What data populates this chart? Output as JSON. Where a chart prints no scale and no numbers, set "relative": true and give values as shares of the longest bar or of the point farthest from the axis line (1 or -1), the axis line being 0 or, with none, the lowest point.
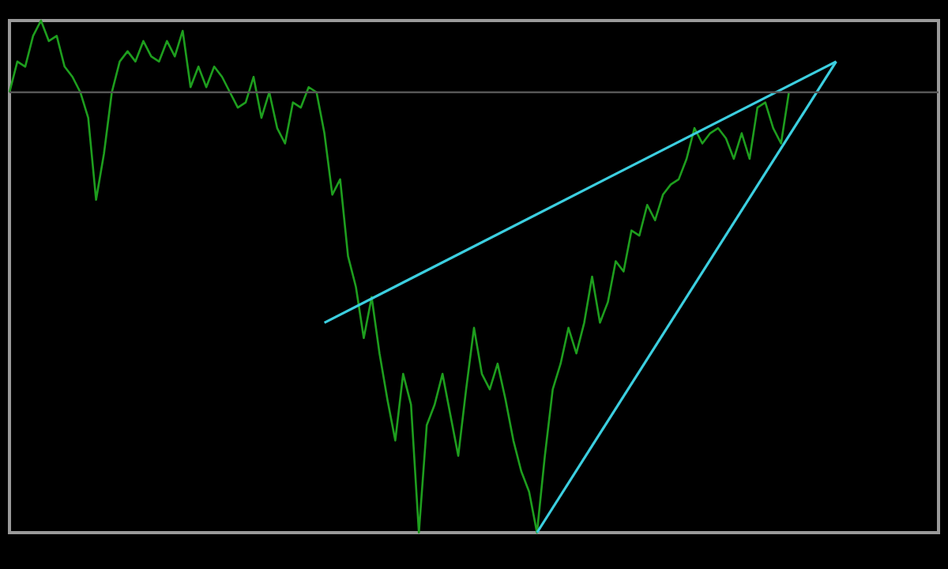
{
  "chart_data": {
    "type": "line",
    "relative": true,
    "tick_labels": false,
    "categories": [
      null,
      null,
      null,
      null,
      null,
      null,
      null,
      null,
      null,
      null,
      null,
      null,
      null,
      null,
      null,
      null,
      null,
      null,
      null,
      null,
      null,
      null,
      null,
      null,
      null,
      null,
      null,
      null,
      null,
      null,
      null,
      null,
      null,
      null,
      null,
      null,
      null,
      null,
      null,
      null,
      null,
      null,
      null,
      null,
      null,
      null,
      null,
      null,
      null,
      null,
      null,
      null,
      null,
      null,
      null,
      null,
      null,
      null,
      null,
      null,
      null,
      null,
      null,
      null,
      null,
      null,
      null,
      null,
      null,
      null,
      null,
      null,
      null,
      null,
      null,
      null,
      null,
      null,
      null,
      null,
      null,
      null,
      null,
      null,
      null,
      null,
      null,
      null,
      null,
      null,
      null,
      null,
      null,
      null,
      null,
      null,
      null,
      null,
      null,
      null,
      null,
      null,
      null,
      null,
      null,
      null,
      null,
      null,
      null,
      null,
      null,
      null,
      null,
      null,
      null,
      null,
      null,
      null,
      null
    ],
    "ref_lines": [
      {
        "axis": "y",
        "value": 0.86,
        "color": "#555555"
      }
    ],
    "series": [
      {
        "color": "#1e9e1e",
        "values": [
          0.86,
          0.92,
          0.91,
          0.97,
          1,
          0.96,
          0.97,
          0.91,
          0.89,
          0.86,
          0.81,
          0.65,
          0.74,
          0.86,
          0.92,
          0.94,
          0.92,
          0.96,
          0.93,
          0.92,
          0.96,
          0.93,
          0.98,
          0.87,
          0.91,
          0.87,
          0.91,
          0.89,
          0.86,
          0.83,
          0.84,
          0.89,
          0.81,
          0.86,
          0.79,
          0.76,
          0.84,
          0.83,
          0.87,
          0.86,
          0.78,
          0.66,
          0.69,
          0.54,
          0.48,
          0.38,
          0.46,
          0.35,
          0.26,
          0.18,
          0.31,
          0.25,
          0,
          0.21,
          0.25,
          0.31,
          0.23,
          0.15,
          0.28,
          0.4,
          0.31,
          0.28,
          0.33,
          0.26,
          0.18,
          0.12,
          0.08,
          0,
          0.15,
          0.28,
          0.33,
          0.4,
          0.35,
          0.41,
          0.5,
          0.41,
          0.45,
          0.53,
          0.51,
          0.59,
          0.58,
          0.64,
          0.61,
          0.66,
          0.68,
          0.69,
          0.73,
          0.79,
          0.76,
          0.78,
          0.79,
          0.77,
          0.73,
          0.78,
          0.73,
          0.83,
          0.84,
          0.79,
          0.76,
          0.86,
          null,
          null,
          null,
          null,
          null,
          null,
          null,
          null,
          null,
          null,
          null,
          null,
          null,
          null,
          null,
          null,
          null,
          null,
          null
        ]
      },
      {
        "type": "line",
        "color": "#3ccfe0",
        "values": [
          null,
          null,
          null,
          null,
          null,
          null,
          null,
          null,
          null,
          null,
          null,
          null,
          null,
          null,
          null,
          null,
          null,
          null,
          null,
          null,
          null,
          null,
          null,
          null,
          null,
          null,
          null,
          null,
          null,
          null,
          null,
          null,
          null,
          null,
          null,
          null,
          null,
          null,
          null,
          null,
          0.41,
          null,
          null,
          null,
          null,
          null,
          null,
          null,
          null,
          null,
          null,
          null,
          null,
          null,
          null,
          null,
          null,
          null,
          null,
          null,
          null,
          null,
          null,
          null,
          null,
          null,
          null,
          null,
          null,
          null,
          null,
          null,
          null,
          null,
          null,
          null,
          null,
          null,
          null,
          null,
          null,
          null,
          null,
          null,
          null,
          null,
          null,
          null,
          null,
          null,
          null,
          null,
          null,
          null,
          null,
          null,
          null,
          null,
          null,
          null,
          null,
          null,
          null,
          null,
          null,
          0.92,
          null,
          null,
          null,
          null,
          null,
          null,
          null,
          null,
          null,
          null,
          null,
          null,
          null
        ]
      },
      {
        "type": "line",
        "color": "#3ccfe0",
        "values": [
          null,
          null,
          null,
          null,
          null,
          null,
          null,
          null,
          null,
          null,
          null,
          null,
          null,
          null,
          null,
          null,
          null,
          null,
          null,
          null,
          null,
          null,
          null,
          null,
          null,
          null,
          null,
          null,
          null,
          null,
          null,
          null,
          null,
          null,
          null,
          null,
          null,
          null,
          null,
          null,
          null,
          null,
          null,
          null,
          null,
          null,
          null,
          null,
          null,
          null,
          null,
          null,
          null,
          null,
          null,
          null,
          null,
          null,
          null,
          null,
          null,
          null,
          null,
          null,
          null,
          null,
          null,
          0,
          null,
          null,
          null,
          null,
          null,
          null,
          null,
          null,
          null,
          null,
          null,
          null,
          null,
          null,
          null,
          null,
          null,
          null,
          null,
          null,
          null,
          null,
          null,
          null,
          null,
          null,
          null,
          null,
          null,
          null,
          null,
          null,
          null,
          null,
          null,
          null,
          null,
          0.92,
          null,
          null,
          null,
          null,
          null,
          null,
          null,
          null,
          null,
          null,
          null,
          null,
          null
        ]
      }
    ]
  }
}
